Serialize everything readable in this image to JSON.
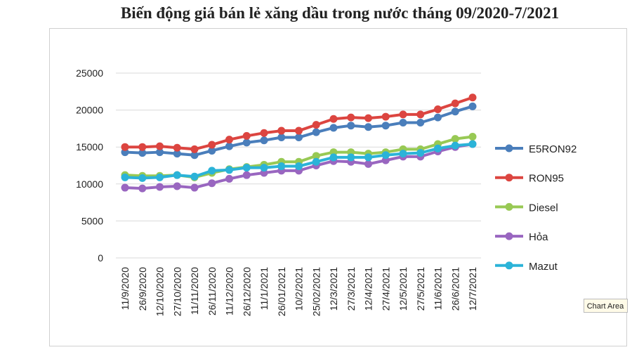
{
  "chart_data": {
    "type": "line",
    "title": "Biến động giá bán lẻ xăng dầu trong nước tháng 09/2020-7/2021",
    "categories": [
      "11/9/2020",
      "26/9/2020",
      "12/10/2020",
      "27/10/2020",
      "11/11/2020",
      "26/11/2020",
      "11/12/2020",
      "26/12/2020",
      "11/1/2021",
      "26/01/2021",
      "10/2/2021",
      "25/02/2021",
      "12/3/2021",
      "27/3/2021",
      "12/4/2021",
      "27/4/2021",
      "12/5/2021",
      "27/5/2021",
      "11/6/2021",
      "26/6/2021",
      "12/7/2021"
    ],
    "series": [
      {
        "name": "E5RON92",
        "color": "#4a7ebb",
        "values": [
          14300,
          14200,
          14300,
          14100,
          13900,
          14500,
          15100,
          15600,
          15900,
          16300,
          16300,
          17000,
          17600,
          17900,
          17700,
          17900,
          18300,
          18300,
          19000,
          19800,
          20500
        ]
      },
      {
        "name": "RON95",
        "color": "#dc4540",
        "values": [
          15000,
          15000,
          15100,
          14900,
          14700,
          15300,
          16000,
          16500,
          16900,
          17200,
          17200,
          18000,
          18800,
          19000,
          18900,
          19100,
          19400,
          19400,
          20100,
          20900,
          21700
        ]
      },
      {
        "name": "Diesel",
        "color": "#98c954",
        "values": [
          11200,
          11100,
          11100,
          11200,
          10900,
          11500,
          12000,
          12300,
          12600,
          13000,
          13000,
          13800,
          14300,
          14300,
          14100,
          14300,
          14700,
          14700,
          15400,
          16100,
          16400
        ]
      },
      {
        "name": "Hỏa",
        "color": "#9966c0",
        "values": [
          9500,
          9400,
          9600,
          9700,
          9500,
          10100,
          10700,
          11200,
          11500,
          11800,
          11800,
          12500,
          13100,
          13000,
          12700,
          13200,
          13700,
          13700,
          14400,
          15000,
          15400
        ]
      },
      {
        "name": "Mazut",
        "color": "#2bb3d8",
        "values": [
          10900,
          10800,
          10900,
          11200,
          11000,
          11800,
          11900,
          12200,
          12200,
          12400,
          12400,
          13000,
          13600,
          13600,
          13600,
          13900,
          14100,
          14200,
          14800,
          15200,
          15400
        ]
      }
    ],
    "ylim": [
      0,
      25000
    ],
    "yticks": [
      0,
      5000,
      10000,
      15000,
      20000,
      25000
    ],
    "grid": true,
    "legend": "right"
  },
  "tooltip": "Chart Area"
}
